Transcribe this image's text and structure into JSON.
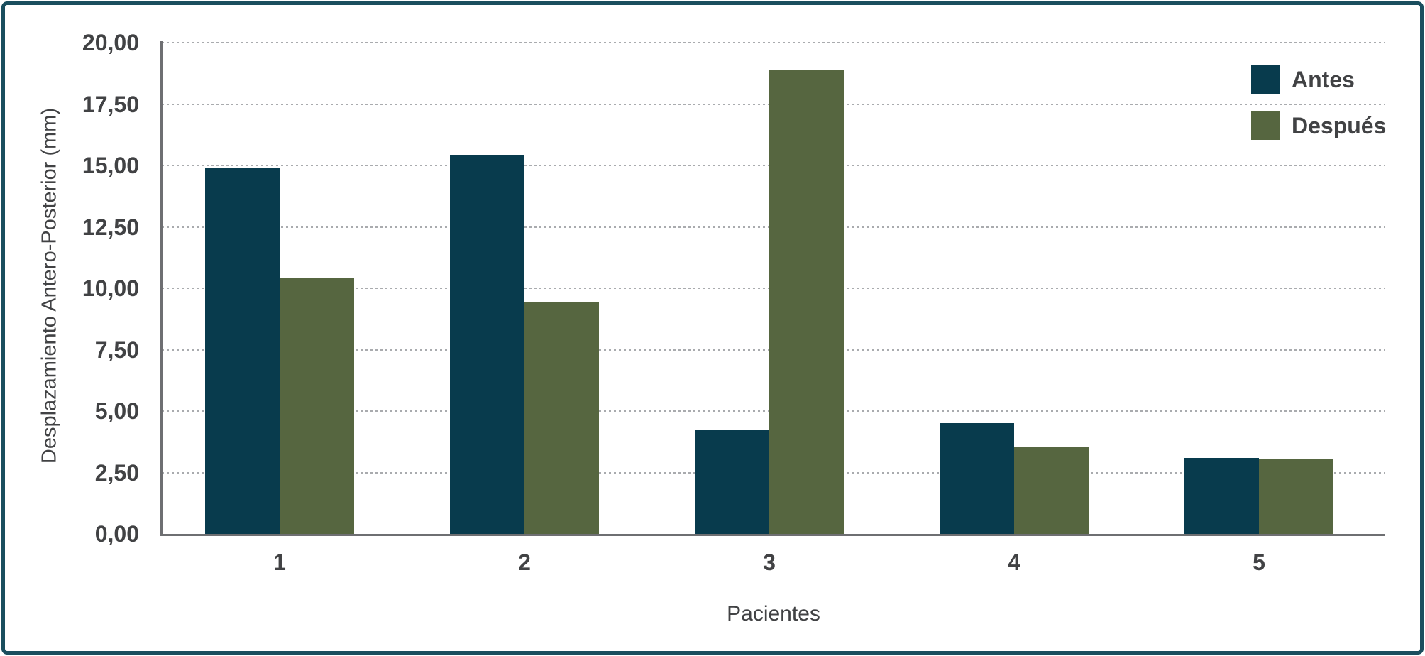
{
  "figure": {
    "frame_color": "#1a4e5e",
    "background_color": "#ffffff",
    "axis_color": "#6e6f72",
    "gridline_color": "#a9abae",
    "text_color": "#414244"
  },
  "chart_data": {
    "type": "bar",
    "title": "",
    "categories": [
      "1",
      "2",
      "3",
      "4",
      "5"
    ],
    "series": [
      {
        "name": "Antes",
        "color": "#083b4d",
        "values": [
          14.9,
          15.4,
          4.25,
          4.5,
          3.1
        ]
      },
      {
        "name": "Después",
        "color": "#566640",
        "values": [
          10.4,
          9.45,
          18.9,
          3.55,
          3.05
        ]
      }
    ],
    "xlabel": "Pacientes",
    "ylabel": "Desplazamiento Antero-Posterior (mm)",
    "ylim": [
      0,
      20
    ],
    "ytick_step": 2.5,
    "y_tick_labels": [
      "0,00",
      "2,50",
      "5,00",
      "7,50",
      "10,00",
      "12,50",
      "15,00",
      "17,50",
      "20,00"
    ],
    "grid": "horizontal-dotted",
    "legend_position": "top-right",
    "bar_gap_within_group": 0
  }
}
